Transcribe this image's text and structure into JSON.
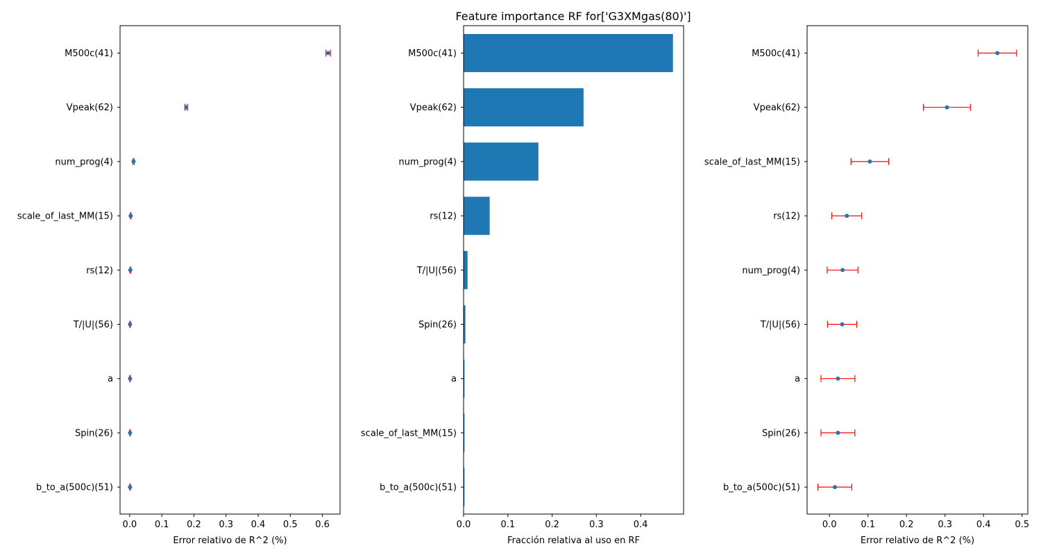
{
  "figure_title": "Feature importance RF for['G3XMgas(80)']",
  "colors": {
    "bar": "#1f77b4",
    "point": "#1f77b4",
    "errorbar": "#ff0000",
    "axis": "#000000"
  },
  "chart_data": [
    {
      "type": "scatter",
      "xlabel": "Error relativo de R^2 (%)",
      "xlim": [
        -0.03,
        0.655
      ],
      "xticks": [
        0.0,
        0.1,
        0.2,
        0.3,
        0.4,
        0.5,
        0.6
      ],
      "xtick_labels": [
        "0.0",
        "0.1",
        "0.2",
        "0.3",
        "0.4",
        "0.5",
        "0.6"
      ],
      "categories": [
        "M500c(41)",
        "Vpeak(62)",
        "num_prog(4)",
        "scale_of_last_MM(15)",
        "rs(12)",
        "T/|U|(56)",
        "a",
        "Spin(26)",
        "b_to_a(500c)(51)"
      ],
      "values": [
        0.618,
        0.176,
        0.012,
        0.003,
        0.002,
        0.001,
        0.001,
        0.001,
        0.001
      ],
      "errors": [
        0.007,
        0.004,
        0.002,
        0.001,
        0.001,
        0.001,
        0.001,
        0.001,
        0.001
      ]
    },
    {
      "type": "bar",
      "xlabel": "Fracción relativa al uso en RF",
      "xlim": [
        0.0,
        0.497
      ],
      "xticks": [
        0.0,
        0.1,
        0.2,
        0.3,
        0.4
      ],
      "xtick_labels": [
        "0.0",
        "0.1",
        "0.2",
        "0.3",
        "0.4"
      ],
      "categories": [
        "M500c(41)",
        "Vpeak(62)",
        "num_prog(4)",
        "rs(12)",
        "T/|U|(56)",
        "Spin(26)",
        "a",
        "scale_of_last_MM(15)",
        "b_to_a(500c)(51)"
      ],
      "values": [
        0.473,
        0.271,
        0.169,
        0.059,
        0.009,
        0.004,
        0.002,
        0.002,
        0.002
      ]
    },
    {
      "type": "scatter",
      "xlabel": "Error relativo de R^2 (%)",
      "xlim": [
        -0.058,
        0.515
      ],
      "xticks": [
        0.0,
        0.1,
        0.2,
        0.3,
        0.4,
        0.5
      ],
      "xtick_labels": [
        "0.0",
        "0.1",
        "0.2",
        "0.3",
        "0.4",
        "0.5"
      ],
      "categories": [
        "M500c(41)",
        "Vpeak(62)",
        "scale_of_last_MM(15)",
        "rs(12)",
        "num_prog(4)",
        "T/|U|(56)",
        "a",
        "Spin(26)",
        "b_to_a(500c)(51)"
      ],
      "values": [
        0.436,
        0.305,
        0.105,
        0.045,
        0.034,
        0.033,
        0.022,
        0.022,
        0.014
      ],
      "errors": [
        0.05,
        0.061,
        0.049,
        0.039,
        0.04,
        0.038,
        0.044,
        0.044,
        0.044
      ]
    }
  ]
}
